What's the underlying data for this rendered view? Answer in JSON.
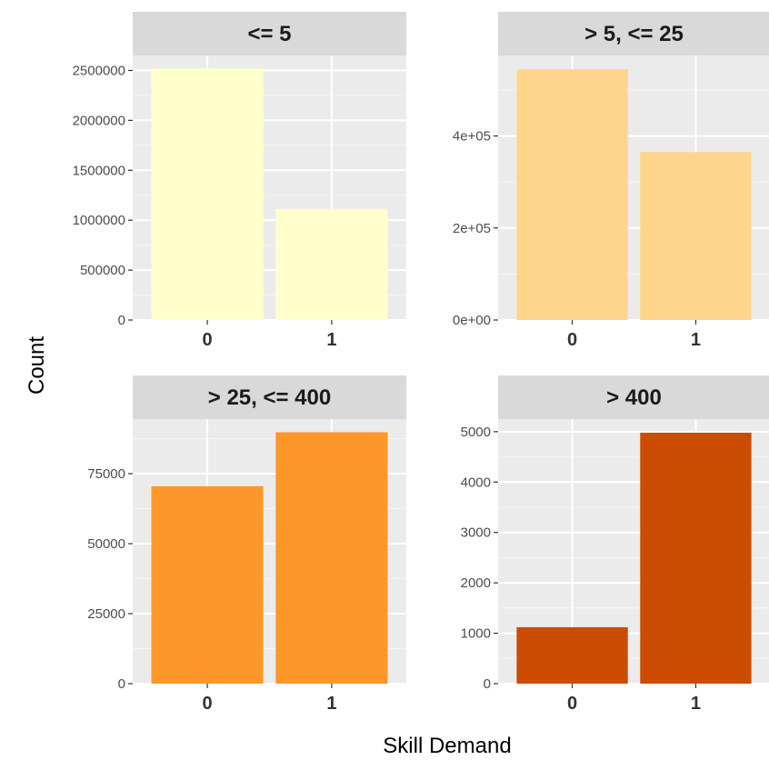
{
  "chart_data": {
    "type": "bar",
    "layout": "facet-grid-2x2",
    "xlabel": "Skill Demand",
    "ylabel": "Count",
    "scales": "free_y",
    "colors": {
      "panel_bg": "#ebebeb",
      "grid_major": "#ffffff",
      "grid_minor": "#f5f5f5",
      "strip_bg": "#d9d9d9"
    },
    "panels": [
      {
        "strip": "<= 5",
        "categories": [
          "0",
          "1"
        ],
        "values": [
          2520000,
          1110000
        ],
        "ylim": [
          0,
          2650000
        ],
        "yticks": [
          0,
          500000,
          1000000,
          1500000,
          2000000,
          2500000
        ],
        "ytick_labels": [
          "0",
          "500000",
          "1000000",
          "1500000",
          "2000000",
          "2500000"
        ],
        "fill": "#ffffcc"
      },
      {
        "strip": "> 5, <= 25",
        "categories": [
          "0",
          "1"
        ],
        "values": [
          545000,
          365000
        ],
        "ylim": [
          0,
          575000
        ],
        "yticks": [
          0,
          200000,
          400000
        ],
        "ytick_labels": [
          "0e+00",
          "2e+05",
          "4e+05"
        ],
        "fill": "#fed58b"
      },
      {
        "strip": "> 25, <= 400",
        "categories": [
          "0",
          "1"
        ],
        "values": [
          70500,
          89800
        ],
        "ylim": [
          0,
          94500
        ],
        "yticks": [
          0,
          25000,
          50000,
          75000
        ],
        "ytick_labels": [
          "0",
          "25000",
          "50000",
          "75000"
        ],
        "fill": "#fd9729"
      },
      {
        "strip": "> 400",
        "categories": [
          "0",
          "1"
        ],
        "values": [
          1120,
          4980
        ],
        "ylim": [
          0,
          5250
        ],
        "yticks": [
          0,
          1000,
          2000,
          3000,
          4000,
          5000
        ],
        "ytick_labels": [
          "0",
          "1000",
          "2000",
          "3000",
          "4000",
          "5000"
        ],
        "fill": "#cc4c02"
      }
    ]
  }
}
